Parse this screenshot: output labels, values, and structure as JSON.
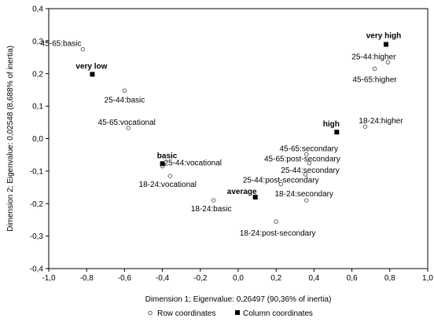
{
  "chart_data": {
    "type": "scatter",
    "xlabel": "Dimension 1; Eigenvalue: 0,26497 (90,36% of inertia)",
    "ylabel": "Dimension 2; Eigenvalue: 0,02548 (8,688% of inertia)",
    "xlim": [
      -1.0,
      1.0
    ],
    "ylim": [
      -0.4,
      0.4
    ],
    "x_ticks": [
      "-1,0",
      "-0,8",
      "-0,6",
      "-0,4",
      "-0,2",
      "0,0",
      "0,2",
      "0,4",
      "0,6",
      "0,8",
      "1,0"
    ],
    "y_ticks": [
      "0,4",
      "0,3",
      "0,2",
      "0,1",
      "0,0",
      "-0,1",
      "-0,2",
      "-0,3",
      "-0,4"
    ],
    "x_tick_values": [
      -1.0,
      -0.8,
      -0.6,
      -0.4,
      -0.2,
      0.0,
      0.2,
      0.4,
      0.6,
      0.8,
      1.0
    ],
    "y_tick_values": [
      0.4,
      0.3,
      0.2,
      0.1,
      0.0,
      -0.1,
      -0.2,
      -0.3,
      -0.4
    ],
    "grid": false,
    "legend_position": "bottom-center",
    "series": [
      {
        "name": "Row coordinates",
        "marker": "open-circle",
        "color": "#555555",
        "points": [
          {
            "label": "45-65:basic",
            "x": -0.82,
            "y": 0.275
          },
          {
            "label": "25-44:basic",
            "x": -0.6,
            "y": 0.148
          },
          {
            "label": "45-65:vocational",
            "x": -0.58,
            "y": 0.033
          },
          {
            "label": "25-44:vocational",
            "x": -0.4,
            "y": -0.085
          },
          {
            "label": "18-24:vocational",
            "x": -0.36,
            "y": -0.115
          },
          {
            "label": "18-24:basic",
            "x": -0.13,
            "y": -0.19
          },
          {
            "label": "18-24:post-secondary",
            "x": 0.2,
            "y": -0.255
          },
          {
            "label": "25-44:post-secondary",
            "x": 0.225,
            "y": -0.14
          },
          {
            "label": "18-24:secondary",
            "x": 0.36,
            "y": -0.19
          },
          {
            "label": "25-44:secondary",
            "x": 0.355,
            "y": -0.11
          },
          {
            "label": "45-65:post-secondary",
            "x": 0.375,
            "y": -0.075
          },
          {
            "label": "45-65:secondary",
            "x": 0.36,
            "y": -0.048
          },
          {
            "label": "18-24:higher",
            "x": 0.67,
            "y": 0.037
          },
          {
            "label": "45-65:higher",
            "x": 0.72,
            "y": 0.215
          },
          {
            "label": "25-44:higher",
            "x": 0.79,
            "y": 0.235
          }
        ]
      },
      {
        "name": "Column coordinates",
        "marker": "filled-square",
        "color": "#000000",
        "points": [
          {
            "label": "very low",
            "x": -0.77,
            "y": 0.198
          },
          {
            "label": "basic",
            "x": -0.4,
            "y": -0.077
          },
          {
            "label": "average",
            "x": 0.09,
            "y": -0.18
          },
          {
            "label": "high",
            "x": 0.52,
            "y": 0.02
          },
          {
            "label": "very high",
            "x": 0.78,
            "y": 0.29
          }
        ]
      }
    ]
  }
}
